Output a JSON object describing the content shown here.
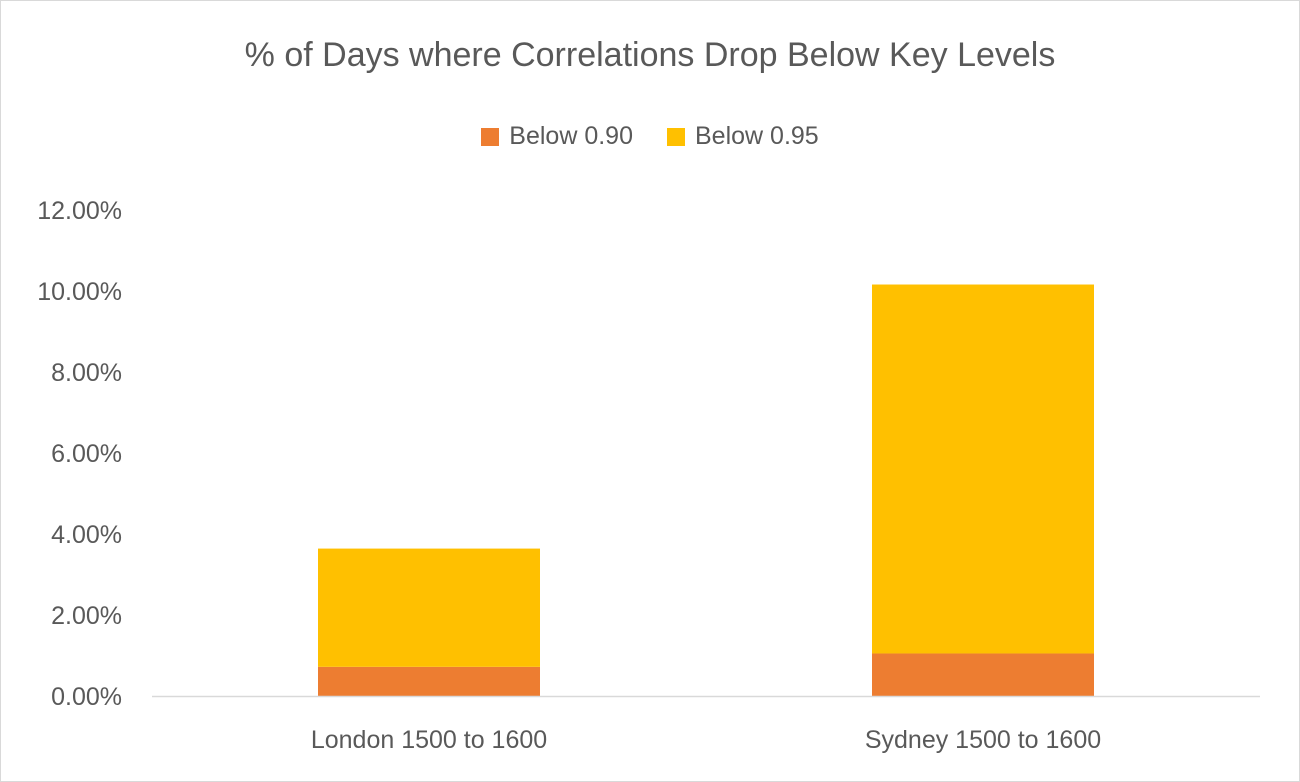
{
  "chart_data": {
    "type": "bar",
    "stacked": true,
    "title": "% of Days where Correlations Drop Below Key Levels",
    "xlabel": "",
    "ylabel": "",
    "categories": [
      "London 1500 to 1600",
      "Sydney 1500 to 1600"
    ],
    "series": [
      {
        "name": "Below 0.90",
        "values": [
          0.0072,
          0.0105
        ],
        "color": "#ED7D31"
      },
      {
        "name": "Below 0.95",
        "values": [
          0.0292,
          0.0911
        ],
        "color": "#FFC000"
      }
    ],
    "ylim": [
      0,
      0.12
    ],
    "yticks": [
      0,
      0.02,
      0.04,
      0.06,
      0.08,
      0.1,
      0.12
    ],
    "ytick_labels": [
      "0.00%",
      "2.00%",
      "4.00%",
      "6.00%",
      "8.00%",
      "10.00%",
      "12.00%"
    ],
    "grid": false,
    "legend_position": "top"
  }
}
